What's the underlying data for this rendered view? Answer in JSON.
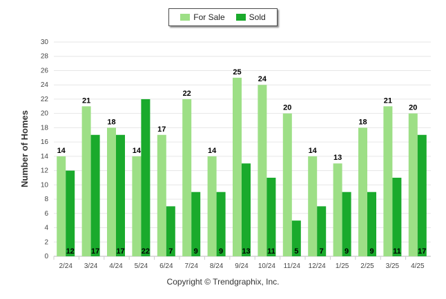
{
  "chart_data": {
    "type": "bar",
    "categories": [
      "2/24",
      "3/24",
      "4/24",
      "5/24",
      "6/24",
      "7/24",
      "8/24",
      "9/24",
      "10/24",
      "11/24",
      "12/24",
      "1/25",
      "2/25",
      "3/25",
      "4/25"
    ],
    "series": [
      {
        "name": "For Sale",
        "color": "#9ddf86",
        "values": [
          14,
          21,
          18,
          14,
          17,
          22,
          14,
          25,
          24,
          20,
          14,
          13,
          18,
          21,
          20
        ]
      },
      {
        "name": "Sold",
        "color": "#1aaa2c",
        "values": [
          12,
          17,
          17,
          22,
          7,
          9,
          9,
          13,
          11,
          5,
          7,
          9,
          9,
          11,
          17
        ]
      }
    ],
    "ylabel": "Number of Homes",
    "ylim": [
      0,
      30
    ],
    "yticks": [
      0,
      2,
      4,
      6,
      8,
      10,
      12,
      14,
      16,
      18,
      20,
      22,
      24,
      26,
      28,
      30
    ],
    "grid": true,
    "legend": "top-center"
  },
  "footer": "Copyright © Trendgraphix, Inc."
}
